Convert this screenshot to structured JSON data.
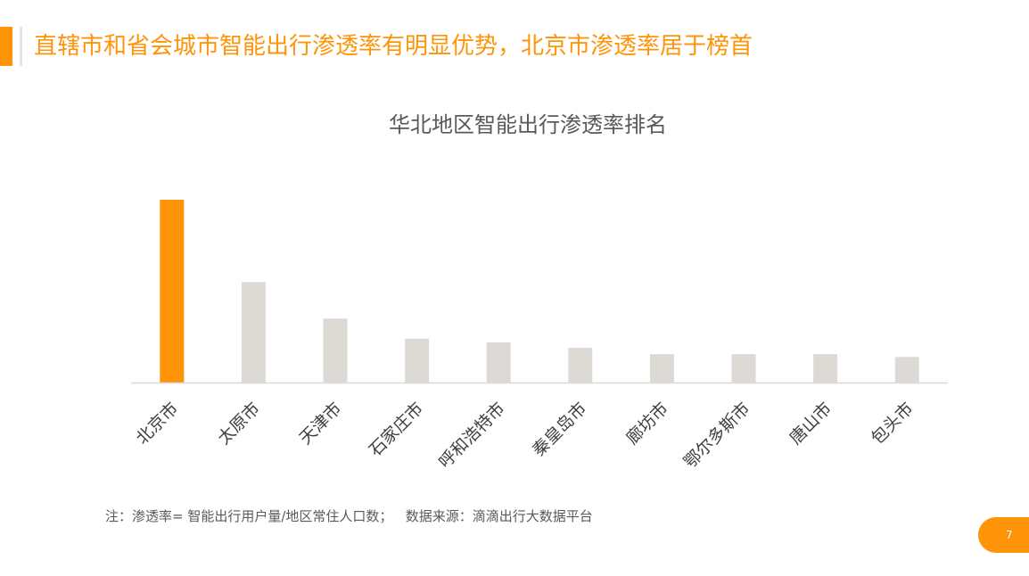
{
  "slide": {
    "title": "直辖市和省会城市智能出行渗透率有明显优势，北京市渗透率居于榜首",
    "footnote": "注：渗透率= 智能出行用户量/地区常住人口数；   数据来源：滴滴出行大数据平台",
    "page_number": "7"
  },
  "colors": {
    "accent": "#FF9408",
    "bar_highlight": "#FF9408",
    "bar_default": "#DDDAD6",
    "axis": "#D9D9D9"
  },
  "chart_data": {
    "type": "bar",
    "title": "华北地区智能出行渗透率排名",
    "xlabel": "",
    "ylabel": "",
    "categories": [
      "北京市",
      "太原市",
      "天津市",
      "石家庄市",
      "呼和浩特市",
      "秦皇岛市",
      "廊坊市",
      "鄂尔多斯市",
      "唐山市",
      "包头市"
    ],
    "values": [
      100,
      55,
      35,
      24,
      22,
      19,
      15.5,
      15.5,
      15.5,
      14
    ],
    "highlight_index": 0,
    "ylim": [
      0,
      100
    ],
    "grid": false,
    "value_axis_labels": false
  }
}
